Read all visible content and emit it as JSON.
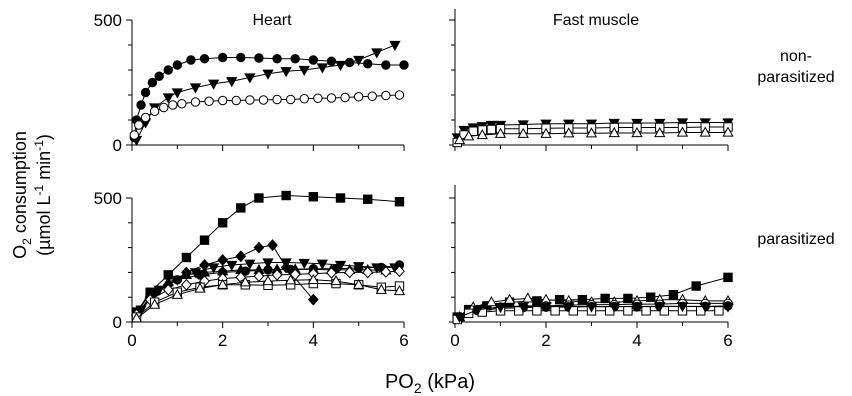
{
  "figure": {
    "ylabel_line1": "O",
    "ylabel_sub1": "2",
    "ylabel_line1_rest": " consumption",
    "ylabel_line2": "(µmol L",
    "ylabel_sup1": "-1",
    "ylabel_mid": " min",
    "ylabel_sup2": "-1",
    "ylabel_end": ")",
    "xlabel_main": "PO",
    "xlabel_sub": "2",
    "xlabel_rest": " (kPa)",
    "col_titles": [
      "Heart",
      "Fast muscle"
    ],
    "row_labels": [
      [
        "non-",
        "parasitized"
      ],
      [
        "parasitized"
      ]
    ]
  },
  "chart_data": [
    {
      "type": "scatter",
      "panel": "top-left",
      "title": "Heart",
      "xlim": [
        0,
        6
      ],
      "ylim": [
        0,
        500
      ],
      "xticks": [
        0,
        2,
        4,
        6
      ],
      "yticks": [
        0,
        500
      ],
      "series": [
        {
          "marker": "circle-filled",
          "x": [
            0.05,
            0.1,
            0.2,
            0.3,
            0.45,
            0.6,
            0.8,
            1.0,
            1.3,
            1.6,
            2.0,
            2.4,
            2.8,
            3.2,
            3.6,
            4.0,
            4.4,
            4.8,
            5.2,
            5.6,
            6.0
          ],
          "y": [
            30,
            100,
            160,
            210,
            250,
            275,
            300,
            320,
            340,
            345,
            350,
            350,
            348,
            345,
            345,
            340,
            335,
            330,
            325,
            320,
            320
          ]
        },
        {
          "marker": "triangle-down-filled",
          "x": [
            0.1,
            0.3,
            0.5,
            0.8,
            1.0,
            1.4,
            1.8,
            2.2,
            2.6,
            3.0,
            3.4,
            3.8,
            4.2,
            4.6,
            5.0,
            5.4,
            5.8
          ],
          "y": [
            20,
            90,
            150,
            190,
            210,
            230,
            245,
            255,
            270,
            285,
            295,
            300,
            310,
            320,
            340,
            370,
            400
          ]
        },
        {
          "marker": "circle-open",
          "x": [
            0.05,
            0.15,
            0.3,
            0.5,
            0.7,
            0.9,
            1.1,
            1.4,
            1.7,
            2.0,
            2.3,
            2.6,
            2.9,
            3.2,
            3.5,
            3.8,
            4.1,
            4.4,
            4.7,
            5.0,
            5.3,
            5.6,
            5.9
          ],
          "y": [
            40,
            80,
            110,
            135,
            150,
            160,
            165,
            172,
            175,
            178,
            178,
            180,
            180,
            182,
            182,
            185,
            187,
            188,
            190,
            193,
            195,
            198,
            200
          ]
        }
      ]
    },
    {
      "type": "scatter",
      "panel": "top-right",
      "title": "Fast muscle",
      "row_label": "non-parasitized",
      "xlim": [
        0,
        6
      ],
      "ylim": [
        0,
        500
      ],
      "series": [
        {
          "marker": "triangle-down-filled",
          "x": [
            0.05,
            0.2,
            0.4,
            0.6,
            0.8,
            1.0,
            1.5,
            2.0,
            2.5,
            3.0,
            3.5,
            4.0,
            4.5,
            5.0,
            5.5,
            6.0
          ],
          "y": [
            30,
            60,
            70,
            75,
            80,
            80,
            82,
            85,
            85,
            85,
            88,
            88,
            88,
            90,
            90,
            90
          ]
        },
        {
          "marker": "square-open",
          "x": [
            0.05,
            0.2,
            0.4,
            0.6,
            0.8,
            1.0,
            1.5,
            2.0,
            2.5,
            3.0,
            3.5,
            4.0,
            4.5,
            5.0,
            5.5,
            6.0
          ],
          "y": [
            10,
            40,
            55,
            60,
            62,
            65,
            65,
            67,
            68,
            68,
            70,
            70,
            70,
            70,
            72,
            72
          ]
        },
        {
          "marker": "triangle-up-open",
          "x": [
            0.1,
            0.3,
            0.6,
            1.0,
            1.5,
            2.0,
            2.5,
            3.0,
            3.5,
            4.0,
            4.5,
            5.0,
            5.5,
            6.0
          ],
          "y": [
            20,
            35,
            40,
            45,
            45,
            45,
            47,
            47,
            48,
            48,
            48,
            50,
            50,
            50
          ]
        }
      ]
    },
    {
      "type": "scatter",
      "panel": "bottom-left",
      "xlim": [
        0,
        6
      ],
      "ylim": [
        0,
        500
      ],
      "xticks": [
        0,
        2,
        4,
        6
      ],
      "yticks": [
        0,
        500
      ],
      "series": [
        {
          "marker": "square-filled",
          "x": [
            0.1,
            0.4,
            0.8,
            1.2,
            1.6,
            2.0,
            2.4,
            2.8,
            3.4,
            4.0,
            4.6,
            5.2,
            5.9
          ],
          "y": [
            40,
            120,
            190,
            260,
            330,
            400,
            460,
            500,
            510,
            505,
            500,
            495,
            485
          ]
        },
        {
          "marker": "diamond-filled",
          "x": [
            0.1,
            0.4,
            0.8,
            1.2,
            1.6,
            2.0,
            2.4,
            2.8,
            3.1,
            3.4,
            4.0
          ],
          "y": [
            30,
            100,
            150,
            200,
            230,
            250,
            265,
            300,
            310,
            220,
            90
          ]
        },
        {
          "marker": "triangle-down-filled",
          "x": [
            0.2,
            0.6,
            1.0,
            1.4,
            1.8,
            2.2,
            2.6,
            3.0,
            3.4,
            3.8,
            4.2,
            4.6,
            5.0,
            5.4,
            5.8
          ],
          "y": [
            50,
            130,
            170,
            200,
            220,
            230,
            235,
            240,
            240,
            238,
            235,
            230,
            225,
            220,
            220
          ]
        },
        {
          "marker": "triangle-up-filled",
          "x": [
            0.1,
            0.4,
            0.8,
            1.2,
            1.6,
            2.0,
            2.4,
            2.8,
            3.2,
            3.6,
            4.0,
            4.4,
            4.8,
            5.2,
            5.6
          ],
          "y": [
            40,
            110,
            160,
            190,
            200,
            205,
            210,
            210,
            212,
            212,
            212,
            210,
            210,
            210,
            208
          ]
        },
        {
          "marker": "circle-filled",
          "x": [
            0.1,
            0.5,
            1.0,
            1.5,
            2.0,
            2.5,
            3.0,
            3.5,
            4.0,
            4.5,
            5.0,
            5.5,
            5.9
          ],
          "y": [
            30,
            120,
            170,
            190,
            200,
            205,
            210,
            212,
            215,
            215,
            218,
            220,
            230
          ]
        },
        {
          "marker": "diamond-open",
          "x": [
            0.1,
            0.4,
            0.8,
            1.2,
            1.6,
            2.0,
            2.4,
            2.8,
            3.2,
            3.6,
            4.0,
            4.4,
            4.8,
            5.2,
            5.6,
            5.9
          ],
          "y": [
            30,
            90,
            130,
            150,
            165,
            175,
            180,
            185,
            190,
            192,
            195,
            198,
            200,
            200,
            202,
            205
          ]
        },
        {
          "marker": "square-open",
          "x": [
            0.1,
            0.5,
            1.0,
            1.5,
            2.0,
            2.5,
            3.0,
            3.5,
            4.0,
            4.5,
            5.0,
            5.5,
            5.9
          ],
          "y": [
            20,
            80,
            120,
            140,
            150,
            150,
            148,
            150,
            155,
            155,
            150,
            140,
            145
          ]
        },
        {
          "marker": "triangle-up-open",
          "x": [
            0.1,
            0.5,
            1.0,
            1.5,
            2.0,
            2.5,
            3.0,
            3.5,
            4.0,
            4.5,
            5.0,
            5.5,
            5.9
          ],
          "y": [
            15,
            70,
            110,
            135,
            150,
            160,
            165,
            168,
            170,
            165,
            150,
            130,
            125
          ]
        }
      ]
    },
    {
      "type": "scatter",
      "panel": "bottom-right",
      "row_label": "parasitized",
      "xlim": [
        0,
        6
      ],
      "ylim": [
        0,
        500
      ],
      "xticks": [
        0,
        2,
        4,
        6
      ],
      "series": [
        {
          "marker": "square-filled",
          "x": [
            0.05,
            0.3,
            0.7,
            1.2,
            1.8,
            2.3,
            2.8,
            3.3,
            3.8,
            4.3,
            4.8,
            5.3,
            6.0
          ],
          "y": [
            20,
            50,
            65,
            80,
            85,
            90,
            90,
            95,
            95,
            100,
            110,
            145,
            180
          ]
        },
        {
          "marker": "triangle-up-open",
          "x": [
            0.1,
            0.4,
            0.8,
            1.2,
            1.6,
            2.0,
            2.5,
            3.0,
            3.5,
            4.0,
            4.5,
            5.0,
            5.5,
            6.0
          ],
          "y": [
            20,
            60,
            80,
            90,
            95,
            90,
            85,
            80,
            80,
            85,
            90,
            90,
            85,
            85
          ]
        },
        {
          "marker": "circle-open",
          "x": [
            0.1,
            0.5,
            1.0,
            1.5,
            2.0,
            2.5,
            3.0,
            3.5,
            4.0,
            4.5,
            5.0,
            5.5,
            6.0
          ],
          "y": [
            15,
            50,
            60,
            65,
            65,
            68,
            70,
            70,
            72,
            72,
            75,
            75,
            75
          ]
        },
        {
          "marker": "circle-filled",
          "x": [
            0.1,
            0.5,
            1.0,
            1.5,
            2.0,
            2.5,
            3.0,
            3.5,
            4.0,
            4.5,
            5.0,
            5.5,
            6.0
          ],
          "y": [
            15,
            45,
            55,
            58,
            60,
            60,
            62,
            62,
            62,
            63,
            63,
            63,
            65
          ]
        },
        {
          "marker": "square-open",
          "x": [
            0.05,
            0.3,
            0.6,
            1.0,
            1.4,
            1.8,
            2.2,
            2.6,
            3.0,
            3.4,
            3.8,
            4.2,
            4.6,
            5.0,
            5.4,
            5.8
          ],
          "y": [
            10,
            35,
            40,
            45,
            45,
            45,
            45,
            45,
            45,
            45,
            45,
            45,
            45,
            45,
            45,
            45
          ]
        },
        {
          "marker": "triangle-down-filled",
          "x": [
            0.1,
            0.5,
            1.0,
            1.5,
            2.0,
            2.5,
            3.0,
            3.5,
            4.0,
            4.5,
            5.0,
            5.5,
            6.0
          ],
          "y": [
            20,
            50,
            60,
            62,
            63,
            63,
            62,
            62,
            63,
            63,
            63,
            62,
            62
          ]
        }
      ]
    }
  ]
}
